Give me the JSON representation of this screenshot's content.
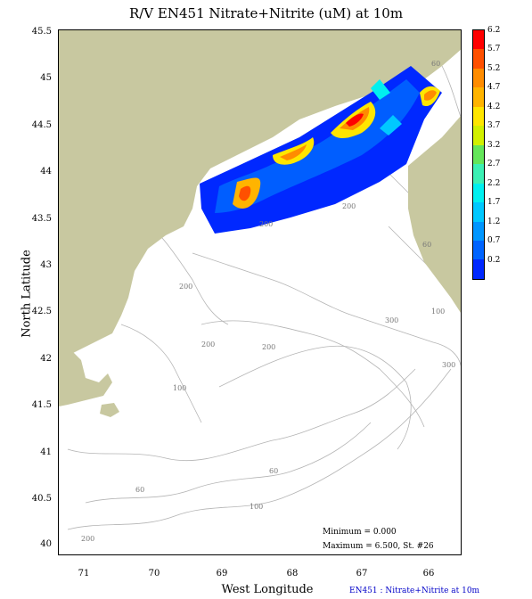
{
  "title": "R/V EN451 Nitrate+Nitrite (uM) at 10m",
  "axes": {
    "ylabel": "North Latitude",
    "xlabel": "West Longitude",
    "yticks": [
      "45.5",
      "45",
      "44.5",
      "44",
      "43.5",
      "43",
      "42.5",
      "42",
      "41.5",
      "41",
      "40.5",
      "40"
    ],
    "xticks": [
      "71",
      "70",
      "69",
      "68",
      "67",
      "66"
    ]
  },
  "colorbar": {
    "labels": [
      "6.2",
      "5.7",
      "5.2",
      "4.7",
      "4.2",
      "3.7",
      "3.2",
      "2.7",
      "2.2",
      "1.7",
      "1.2",
      "0.7",
      "0.2"
    ],
    "colors": [
      "#ff0000",
      "#ff5000",
      "#ff8c00",
      "#ffb400",
      "#ffe600",
      "#d2f000",
      "#64e65a",
      "#3cf0b4",
      "#00f0f0",
      "#00c8ff",
      "#0096ff",
      "#0064ff",
      "#0028ff"
    ]
  },
  "contour_labels": [
    "60",
    "200",
    "200",
    "60",
    "100",
    "200",
    "300",
    "200",
    "200",
    "100",
    "300",
    "60",
    "60",
    "100",
    "200"
  ],
  "stats": {
    "minimum": "Minimum = 0.000",
    "maximum": "Maximum = 6.500, St. #26"
  },
  "footer": "EN451 : Nitrate+Nitrite at 10m",
  "colors": {
    "land": "#c8c8a0",
    "contour": "#b4b4b4",
    "frame": "#000000"
  }
}
